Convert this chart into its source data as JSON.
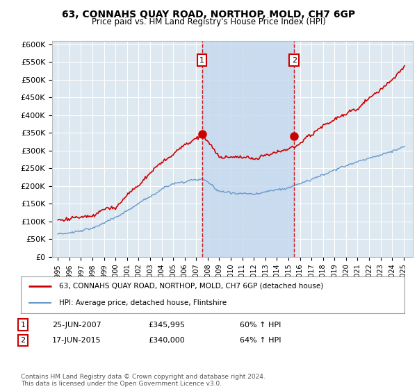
{
  "title": "63, CONNAHS QUAY ROAD, NORTHOP, MOLD, CH7 6GP",
  "subtitle": "Price paid vs. HM Land Registry's House Price Index (HPI)",
  "sale1_date": "25-JUN-2007",
  "sale1_price": 345995,
  "sale1_price_str": "£345,995",
  "sale1_pct": "60% ↑ HPI",
  "sale2_date": "17-JUN-2015",
  "sale2_price": 340000,
  "sale2_price_str": "£340,000",
  "sale2_pct": "64% ↑ HPI",
  "legend_label1": "63, CONNAHS QUAY ROAD, NORTHOP, MOLD, CH7 6GP (detached house)",
  "legend_label2": "HPI: Average price, detached house, Flintshire",
  "footer": "Contains HM Land Registry data © Crown copyright and database right 2024.\nThis data is licensed under the Open Government Licence v3.0.",
  "line1_color": "#cc0000",
  "line2_color": "#6699cc",
  "background_color": "#ffffff",
  "plot_bg_color": "#dde8f0",
  "grid_color": "#ffffff",
  "shade_color": "#c5d8ee",
  "sale1_x": 2007.5,
  "sale2_x": 2015.5,
  "xmin": 1995,
  "xmax": 2025
}
